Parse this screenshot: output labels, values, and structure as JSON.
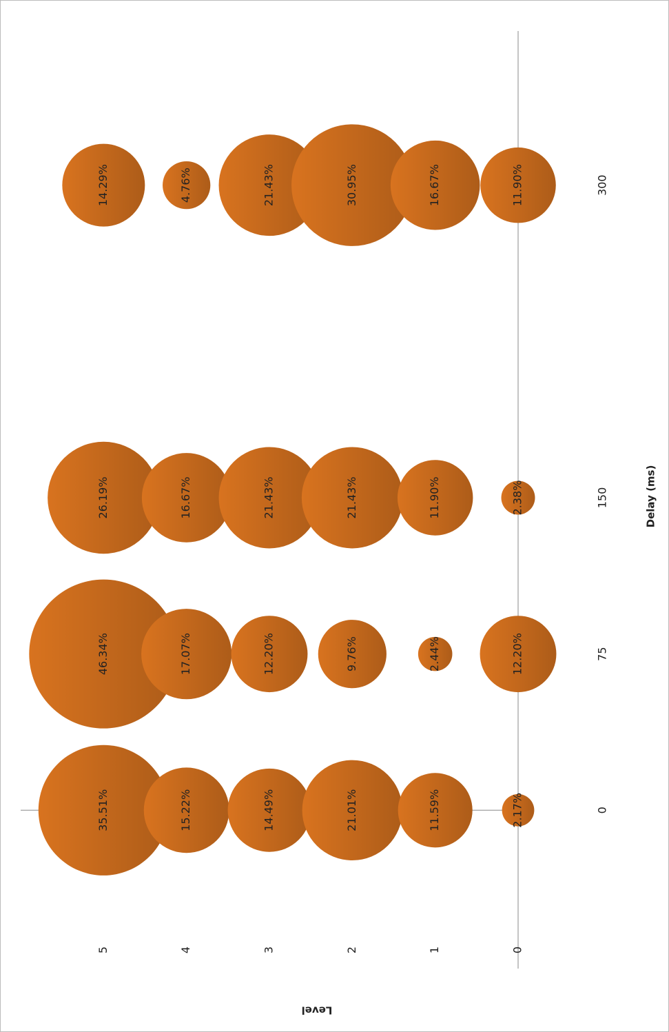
{
  "chart_data": {
    "type": "bubble",
    "x_label": "Delay (ms)",
    "y_label": "Level",
    "xlim": [
      -76,
      374
    ],
    "xticks": [
      0,
      75,
      150,
      300
    ],
    "ylim": [
      0,
      6
    ],
    "yticks": [
      0,
      1,
      2,
      3,
      4,
      5
    ],
    "series": [
      {
        "color": "#d8731f",
        "x": [
          0,
          0,
          0,
          0,
          0,
          0,
          75,
          75,
          75,
          75,
          75,
          75,
          150,
          150,
          150,
          150,
          150,
          150,
          300,
          300,
          300,
          300,
          300,
          300
        ],
        "y": [
          5,
          4,
          3,
          2,
          1,
          0,
          5,
          4,
          3,
          2,
          1,
          0,
          5,
          4,
          3,
          2,
          1,
          0,
          5,
          4,
          3,
          2,
          1,
          0
        ],
        "size": [
          35.51,
          15.22,
          14.49,
          21.01,
          11.59,
          2.17,
          46.34,
          17.07,
          12.2,
          9.76,
          2.44,
          12.2,
          26.19,
          16.67,
          21.43,
          21.43,
          11.9,
          2.38,
          14.29,
          4.76,
          21.43,
          30.95,
          16.67,
          11.9
        ],
        "value_labels": [
          "35.51%",
          "15.22%",
          "14.49%",
          "21.01%",
          "11.59%",
          "2.17%",
          "46.34%",
          "17.07%",
          "12.20%",
          "9.76%",
          "2.44%",
          "12.20%",
          "26.19%",
          "16.67%",
          "21.43%",
          "21.43%",
          "11.90%",
          "2.38%",
          "14.29%",
          "4.76%",
          "21.43%",
          "30.95%",
          "16.67%",
          "11.90%"
        ]
      }
    ]
  }
}
